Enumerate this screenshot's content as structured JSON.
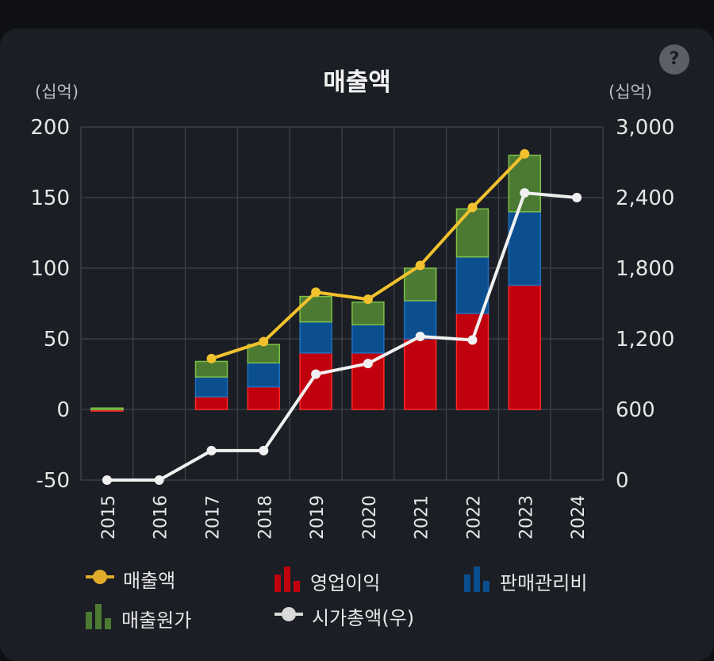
{
  "page": {
    "help_label": "?"
  },
  "chart_data": {
    "type": "bar",
    "title": "매출액",
    "ylabel_left": "(십억)",
    "ylabel_right": "(십억)",
    "categories": [
      "2015",
      "2016",
      "2017",
      "2018",
      "2019",
      "2020",
      "2021",
      "2022",
      "2023",
      "2024"
    ],
    "y_left": {
      "range": [
        -50,
        200
      ],
      "ticks": [
        "200",
        "150",
        "100",
        "50",
        "0",
        "-50"
      ]
    },
    "y_right": {
      "range": [
        0,
        3000
      ],
      "ticks": [
        "3,000",
        "2,400",
        "1,800",
        "1,200",
        "600",
        "0"
      ]
    },
    "stacked_bars": [
      {
        "name": "영업이익",
        "color": "#c0000c",
        "values": [
          0,
          null,
          9,
          16,
          40,
          40,
          50,
          68,
          88,
          null
        ]
      },
      {
        "name": "판매관리비",
        "color": "#0b4f8f",
        "values": [
          1,
          null,
          14,
          17,
          22,
          20,
          27,
          40,
          52,
          null
        ]
      },
      {
        "name": "매출원가",
        "color": "#4c7a33",
        "values": [
          0,
          null,
          11,
          13,
          18,
          16,
          23,
          34,
          40,
          null
        ]
      }
    ],
    "lines": [
      {
        "name": "매출액",
        "axis": "left",
        "color": "#f2c12e",
        "values": [
          null,
          null,
          36,
          48,
          83,
          78,
          102,
          143,
          181,
          null
        ]
      },
      {
        "name": "시가총액(우)",
        "axis": "right",
        "color": "#f0f0f0",
        "values": [
          0,
          0,
          250,
          250,
          900,
          990,
          1220,
          1190,
          2440,
          2400
        ]
      }
    ],
    "grid": true
  },
  "legend": [
    {
      "label": "매출액",
      "icon": "line-marker-icon",
      "color": "#e0ac2a"
    },
    {
      "label": "영업이익",
      "icon": "bar-icon",
      "color": "#c0000c"
    },
    {
      "label": "판매관리비",
      "icon": "bar-icon",
      "color": "#0b4f8f"
    },
    {
      "label": "매출원가",
      "icon": "bar-icon",
      "color": "#4c7a33"
    },
    {
      "label": "시가총액(우)",
      "icon": "line-marker-icon",
      "color": "#d9d9d9"
    }
  ]
}
